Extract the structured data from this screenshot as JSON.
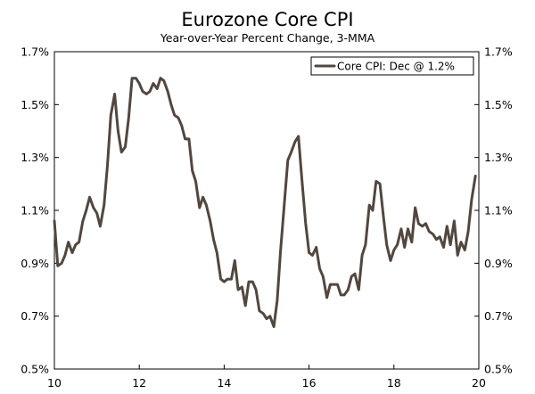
{
  "chart_data": {
    "type": "line",
    "title": "Eurozone Core CPI",
    "subtitle": "Year-over-Year Percent Change, 3-MMA",
    "xlabel": "",
    "ylabel": "",
    "xlim": [
      2010.0,
      2020.0
    ],
    "ylim": [
      0.5,
      1.7
    ],
    "x_ticks": [
      {
        "value": 2010,
        "label": "10"
      },
      {
        "value": 2012,
        "label": "12"
      },
      {
        "value": 2014,
        "label": "14"
      },
      {
        "value": 2016,
        "label": "16"
      },
      {
        "value": 2018,
        "label": "18"
      },
      {
        "value": 2020,
        "label": "20"
      }
    ],
    "y_ticks": [
      {
        "value": 0.5,
        "label": "0.5%"
      },
      {
        "value": 0.7,
        "label": "0.7%"
      },
      {
        "value": 0.9,
        "label": "0.9%"
      },
      {
        "value": 1.1,
        "label": "1.1%"
      },
      {
        "value": 1.3,
        "label": "1.3%"
      },
      {
        "value": 1.5,
        "label": "1.5%"
      },
      {
        "value": 1.7,
        "label": "1.7%"
      }
    ],
    "grid": false,
    "legend_position": "top-right",
    "series": [
      {
        "name": "Core CPI: Dec @ 1.2%",
        "color": "#52473e",
        "points": [
          [
            2010.0,
            1.06
          ],
          [
            2010.08,
            0.89
          ],
          [
            2010.17,
            0.9
          ],
          [
            2010.25,
            0.93
          ],
          [
            2010.33,
            0.98
          ],
          [
            2010.42,
            0.94
          ],
          [
            2010.5,
            0.97
          ],
          [
            2010.58,
            0.98
          ],
          [
            2010.67,
            1.06
          ],
          [
            2010.75,
            1.1
          ],
          [
            2010.83,
            1.15
          ],
          [
            2010.92,
            1.11
          ],
          [
            2011.0,
            1.09
          ],
          [
            2011.08,
            1.04
          ],
          [
            2011.17,
            1.12
          ],
          [
            2011.25,
            1.27
          ],
          [
            2011.33,
            1.46
          ],
          [
            2011.42,
            1.54
          ],
          [
            2011.5,
            1.4
          ],
          [
            2011.58,
            1.32
          ],
          [
            2011.67,
            1.34
          ],
          [
            2011.75,
            1.45
          ],
          [
            2011.83,
            1.6
          ],
          [
            2011.92,
            1.6
          ],
          [
            2012.0,
            1.58
          ],
          [
            2012.08,
            1.55
          ],
          [
            2012.17,
            1.54
          ],
          [
            2012.25,
            1.55
          ],
          [
            2012.33,
            1.58
          ],
          [
            2012.42,
            1.56
          ],
          [
            2012.5,
            1.6
          ],
          [
            2012.58,
            1.59
          ],
          [
            2012.67,
            1.55
          ],
          [
            2012.75,
            1.5
          ],
          [
            2012.83,
            1.46
          ],
          [
            2012.92,
            1.45
          ],
          [
            2013.0,
            1.42
          ],
          [
            2013.08,
            1.37
          ],
          [
            2013.17,
            1.37
          ],
          [
            2013.25,
            1.25
          ],
          [
            2013.33,
            1.21
          ],
          [
            2013.42,
            1.11
          ],
          [
            2013.5,
            1.15
          ],
          [
            2013.58,
            1.12
          ],
          [
            2013.67,
            1.06
          ],
          [
            2013.75,
            0.99
          ],
          [
            2013.83,
            0.94
          ],
          [
            2013.92,
            0.84
          ],
          [
            2014.0,
            0.83
          ],
          [
            2014.08,
            0.84
          ],
          [
            2014.17,
            0.84
          ],
          [
            2014.25,
            0.91
          ],
          [
            2014.33,
            0.8
          ],
          [
            2014.42,
            0.81
          ],
          [
            2014.5,
            0.74
          ],
          [
            2014.58,
            0.83
          ],
          [
            2014.67,
            0.83
          ],
          [
            2014.75,
            0.8
          ],
          [
            2014.83,
            0.72
          ],
          [
            2014.92,
            0.71
          ],
          [
            2015.0,
            0.69
          ],
          [
            2015.08,
            0.7
          ],
          [
            2015.17,
            0.66
          ],
          [
            2015.25,
            0.76
          ],
          [
            2015.33,
            0.95
          ],
          [
            2015.42,
            1.13
          ],
          [
            2015.5,
            1.29
          ],
          [
            2015.58,
            1.32
          ],
          [
            2015.67,
            1.36
          ],
          [
            2015.75,
            1.38
          ],
          [
            2015.83,
            1.22
          ],
          [
            2015.92,
            1.05
          ],
          [
            2016.0,
            0.94
          ],
          [
            2016.08,
            0.93
          ],
          [
            2016.17,
            0.96
          ],
          [
            2016.25,
            0.88
          ],
          [
            2016.33,
            0.85
          ],
          [
            2016.42,
            0.77
          ],
          [
            2016.5,
            0.82
          ],
          [
            2016.58,
            0.82
          ],
          [
            2016.67,
            0.82
          ],
          [
            2016.75,
            0.78
          ],
          [
            2016.83,
            0.78
          ],
          [
            2016.92,
            0.8
          ],
          [
            2017.0,
            0.85
          ],
          [
            2017.08,
            0.86
          ],
          [
            2017.17,
            0.8
          ],
          [
            2017.25,
            0.93
          ],
          [
            2017.33,
            0.97
          ],
          [
            2017.42,
            1.12
          ],
          [
            2017.5,
            1.1
          ],
          [
            2017.58,
            1.21
          ],
          [
            2017.67,
            1.2
          ],
          [
            2017.75,
            1.08
          ],
          [
            2017.83,
            0.97
          ],
          [
            2017.92,
            0.91
          ],
          [
            2018.0,
            0.95
          ],
          [
            2018.08,
            0.97
          ],
          [
            2018.17,
            1.03
          ],
          [
            2018.25,
            0.96
          ],
          [
            2018.33,
            1.03
          ],
          [
            2018.42,
            0.98
          ],
          [
            2018.5,
            1.11
          ],
          [
            2018.58,
            1.05
          ],
          [
            2018.67,
            1.04
          ],
          [
            2018.75,
            1.05
          ],
          [
            2018.83,
            1.02
          ],
          [
            2018.92,
            1.01
          ],
          [
            2019.0,
            0.99
          ],
          [
            2019.08,
            1.0
          ],
          [
            2019.17,
            0.96
          ],
          [
            2019.25,
            1.04
          ],
          [
            2019.33,
            0.97
          ],
          [
            2019.42,
            1.06
          ],
          [
            2019.5,
            0.93
          ],
          [
            2019.58,
            0.98
          ],
          [
            2019.67,
            0.95
          ],
          [
            2019.75,
            1.02
          ],
          [
            2019.83,
            1.14
          ],
          [
            2019.92,
            1.23
          ]
        ]
      }
    ]
  }
}
